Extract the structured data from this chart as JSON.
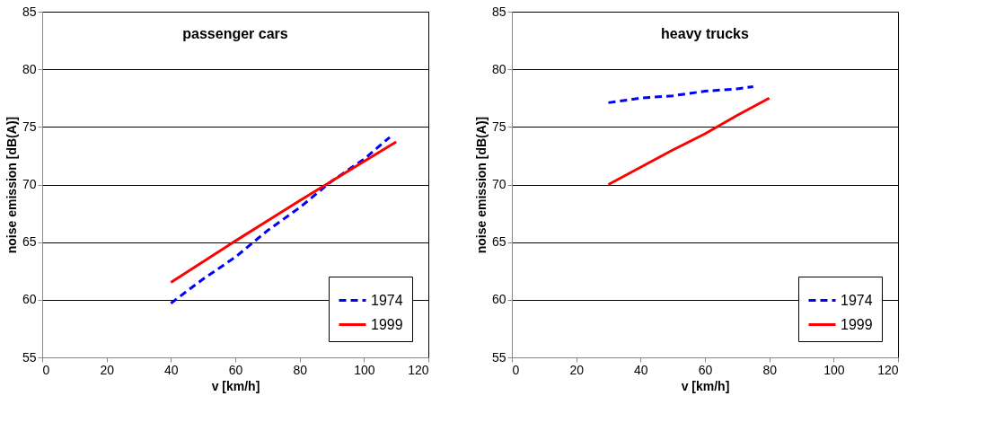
{
  "chart_data": [
    {
      "type": "line",
      "title": "passenger cars",
      "xlabel": "v [km/h]",
      "ylabel": "noise emission [dB(A)]",
      "xlim": [
        0,
        120
      ],
      "xticks": [
        0,
        20,
        40,
        60,
        80,
        100,
        120
      ],
      "ylim": [
        55,
        85
      ],
      "yticks": [
        55,
        60,
        65,
        70,
        75,
        80,
        85
      ],
      "grid": "y",
      "legend": "bottom right",
      "marker": "none",
      "series": [
        {
          "name": "1974",
          "color": "#0000ff",
          "line_style": "dashed",
          "x": [
            40,
            50,
            60,
            70,
            80,
            90,
            100,
            108
          ],
          "values": [
            59.7,
            61.8,
            63.7,
            66.0,
            68.0,
            70.3,
            72.2,
            74.1
          ]
        },
        {
          "name": "1999",
          "color": "#ff0000",
          "line_style": "solid",
          "x": [
            40,
            60,
            80,
            100,
            110
          ],
          "values": [
            61.5,
            65.1,
            68.6,
            72.0,
            73.7
          ]
        }
      ]
    },
    {
      "type": "line",
      "title": "heavy trucks",
      "xlabel": "v [km/h]",
      "ylabel": "noise emission [dB(A)]",
      "xlim": [
        0,
        120
      ],
      "xticks": [
        0,
        20,
        40,
        60,
        80,
        100,
        120
      ],
      "ylim": [
        55,
        85
      ],
      "yticks": [
        55,
        60,
        65,
        70,
        75,
        80,
        85
      ],
      "grid": "y",
      "legend": "bottom right",
      "marker": "none",
      "series": [
        {
          "name": "1974",
          "color": "#0000ff",
          "line_style": "dashed",
          "x": [
            30,
            40,
            50,
            60,
            70,
            75
          ],
          "values": [
            77.1,
            77.5,
            77.7,
            78.1,
            78.3,
            78.5
          ]
        },
        {
          "name": "1999",
          "color": "#ff0000",
          "line_style": "solid",
          "x": [
            30,
            40,
            50,
            60,
            70,
            80
          ],
          "values": [
            70.0,
            71.5,
            73.0,
            74.4,
            76.0,
            77.5
          ]
        }
      ]
    }
  ]
}
